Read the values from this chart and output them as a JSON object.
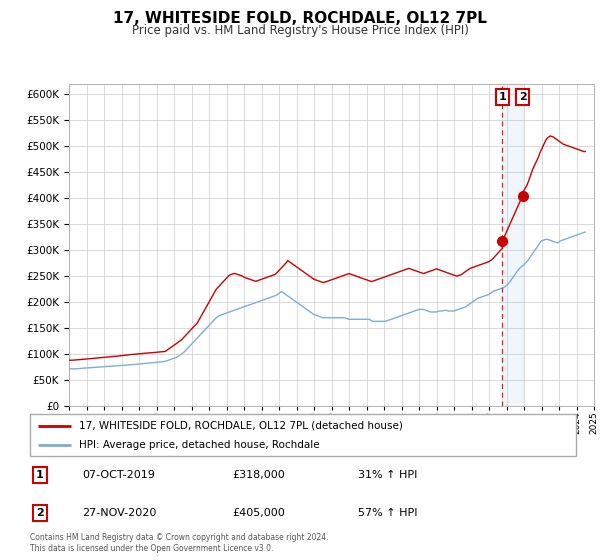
{
  "title": "17, WHITESIDE FOLD, ROCHDALE, OL12 7PL",
  "subtitle": "Price paid vs. HM Land Registry's House Price Index (HPI)",
  "title_fontsize": 11,
  "subtitle_fontsize": 8.5,
  "legend_label_red": "17, WHITESIDE FOLD, ROCHDALE, OL12 7PL (detached house)",
  "legend_label_blue": "HPI: Average price, detached house, Rochdale",
  "footer": "Contains HM Land Registry data © Crown copyright and database right 2024.\nThis data is licensed under the Open Government Licence v3.0.",
  "event1_label": "1",
  "event1_date": "07-OCT-2019",
  "event1_price": "£318,000",
  "event1_pct": "31% ↑ HPI",
  "event1_year": 2019.77,
  "event1_value": 318000,
  "event2_label": "2",
  "event2_date": "27-NOV-2020",
  "event2_price": "£405,000",
  "event2_pct": "57% ↑ HPI",
  "event2_year": 2020.92,
  "event2_value": 405000,
  "red_color": "#cc0000",
  "blue_color": "#7bafd4",
  "grid_color": "#cccccc",
  "bg_color": "#ffffff",
  "ylim": [
    0,
    620000
  ],
  "xlim_start": 1995,
  "xlim_end": 2025,
  "red_x": [
    1995.0,
    1995.083,
    1995.167,
    1995.25,
    1995.333,
    1995.417,
    1995.5,
    1995.583,
    1995.667,
    1995.75,
    1995.833,
    1995.917,
    1996.0,
    1996.083,
    1996.167,
    1996.25,
    1996.333,
    1996.417,
    1996.5,
    1996.583,
    1996.667,
    1996.75,
    1996.833,
    1996.917,
    1997.0,
    1997.083,
    1997.167,
    1997.25,
    1997.333,
    1997.417,
    1997.5,
    1997.583,
    1997.667,
    1997.75,
    1997.833,
    1997.917,
    1998.0,
    1998.083,
    1998.167,
    1998.25,
    1998.333,
    1998.417,
    1998.5,
    1998.583,
    1998.667,
    1998.75,
    1998.833,
    1998.917,
    1999.0,
    1999.083,
    1999.167,
    1999.25,
    1999.333,
    1999.417,
    1999.5,
    1999.583,
    1999.667,
    1999.75,
    1999.833,
    1999.917,
    2000.0,
    2000.083,
    2000.167,
    2000.25,
    2000.333,
    2000.417,
    2000.5,
    2000.583,
    2000.667,
    2000.75,
    2000.833,
    2000.917,
    2001.0,
    2001.083,
    2001.167,
    2001.25,
    2001.333,
    2001.417,
    2001.5,
    2001.583,
    2001.667,
    2001.75,
    2001.833,
    2001.917,
    2002.0,
    2002.083,
    2002.167,
    2002.25,
    2002.333,
    2002.417,
    2002.5,
    2002.583,
    2002.667,
    2002.75,
    2002.833,
    2002.917,
    2003.0,
    2003.083,
    2003.167,
    2003.25,
    2003.333,
    2003.417,
    2003.5,
    2003.583,
    2003.667,
    2003.75,
    2003.833,
    2003.917,
    2004.0,
    2004.083,
    2004.167,
    2004.25,
    2004.333,
    2004.417,
    2004.5,
    2004.583,
    2004.667,
    2004.75,
    2004.833,
    2004.917,
    2005.0,
    2005.083,
    2005.167,
    2005.25,
    2005.333,
    2005.417,
    2005.5,
    2005.583,
    2005.667,
    2005.75,
    2005.833,
    2005.917,
    2006.0,
    2006.083,
    2006.167,
    2006.25,
    2006.333,
    2006.417,
    2006.5,
    2006.583,
    2006.667,
    2006.75,
    2006.833,
    2006.917,
    2007.0,
    2007.083,
    2007.167,
    2007.25,
    2007.333,
    2007.417,
    2007.5,
    2007.583,
    2007.667,
    2007.75,
    2007.833,
    2007.917,
    2008.0,
    2008.083,
    2008.167,
    2008.25,
    2008.333,
    2008.417,
    2008.5,
    2008.583,
    2008.667,
    2008.75,
    2008.833,
    2008.917,
    2009.0,
    2009.083,
    2009.167,
    2009.25,
    2009.333,
    2009.417,
    2009.5,
    2009.583,
    2009.667,
    2009.75,
    2009.833,
    2009.917,
    2010.0,
    2010.083,
    2010.167,
    2010.25,
    2010.333,
    2010.417,
    2010.5,
    2010.583,
    2010.667,
    2010.75,
    2010.833,
    2010.917,
    2011.0,
    2011.083,
    2011.167,
    2011.25,
    2011.333,
    2011.417,
    2011.5,
    2011.583,
    2011.667,
    2011.75,
    2011.833,
    2011.917,
    2012.0,
    2012.083,
    2012.167,
    2012.25,
    2012.333,
    2012.417,
    2012.5,
    2012.583,
    2012.667,
    2012.75,
    2012.833,
    2012.917,
    2013.0,
    2013.083,
    2013.167,
    2013.25,
    2013.333,
    2013.417,
    2013.5,
    2013.583,
    2013.667,
    2013.75,
    2013.833,
    2013.917,
    2014.0,
    2014.083,
    2014.167,
    2014.25,
    2014.333,
    2014.417,
    2014.5,
    2014.583,
    2014.667,
    2014.75,
    2014.833,
    2014.917,
    2015.0,
    2015.083,
    2015.167,
    2015.25,
    2015.333,
    2015.417,
    2015.5,
    2015.583,
    2015.667,
    2015.75,
    2015.833,
    2015.917,
    2016.0,
    2016.083,
    2016.167,
    2016.25,
    2016.333,
    2016.417,
    2016.5,
    2016.583,
    2016.667,
    2016.75,
    2016.833,
    2016.917,
    2017.0,
    2017.083,
    2017.167,
    2017.25,
    2017.333,
    2017.417,
    2017.5,
    2017.583,
    2017.667,
    2017.75,
    2017.833,
    2017.917,
    2018.0,
    2018.083,
    2018.167,
    2018.25,
    2018.333,
    2018.417,
    2018.5,
    2018.583,
    2018.667,
    2018.75,
    2018.833,
    2018.917,
    2019.0,
    2019.083,
    2019.167,
    2019.25,
    2019.333,
    2019.417,
    2019.5,
    2019.583,
    2019.667,
    2019.75,
    2019.77,
    2020.92,
    2021.0,
    2021.083,
    2021.167,
    2021.25,
    2021.333,
    2021.417,
    2021.5,
    2021.583,
    2021.667,
    2021.75,
    2021.833,
    2021.917,
    2022.0,
    2022.083,
    2022.167,
    2022.25,
    2022.333,
    2022.417,
    2022.5,
    2022.583,
    2022.667,
    2022.75,
    2022.833,
    2022.917,
    2023.0,
    2023.083,
    2023.167,
    2023.25,
    2023.333,
    2023.417,
    2023.5,
    2023.583,
    2023.667,
    2023.75,
    2023.833,
    2023.917,
    2024.0,
    2024.083,
    2024.167,
    2024.25,
    2024.333,
    2024.417,
    2024.5
  ],
  "red_y": [
    88000,
    88200,
    88100,
    88300,
    88500,
    88800,
    89000,
    89200,
    89500,
    89800,
    90000,
    90200,
    90500,
    90800,
    91000,
    91200,
    91500,
    91800,
    92000,
    92300,
    92600,
    93000,
    93200,
    93500,
    93800,
    94000,
    94200,
    94500,
    94800,
    95000,
    95300,
    95600,
    95800,
    96000,
    96300,
    96600,
    97000,
    97200,
    97500,
    97800,
    98000,
    98500,
    99000,
    99200,
    99500,
    99800,
    100000,
    100200,
    100500,
    100800,
    101000,
    101200,
    101500,
    101800,
    102000,
    102200,
    102500,
    102800,
    103000,
    103200,
    103500,
    103800,
    104000,
    104300,
    104600,
    104800,
    105000,
    107000,
    109000,
    111000,
    113000,
    115000,
    117000,
    119000,
    121000,
    123000,
    125000,
    127000,
    130000,
    133000,
    136000,
    139000,
    142000,
    145000,
    148000,
    151000,
    154000,
    157000,
    160000,
    165000,
    170000,
    175000,
    180000,
    185000,
    190000,
    195000,
    200000,
    205000,
    210000,
    215000,
    220000,
    225000,
    228000,
    231000,
    234000,
    237000,
    240000,
    243000,
    246000,
    249000,
    252000,
    253000,
    254000,
    255000,
    255000,
    254000,
    253000,
    252000,
    251000,
    250000,
    248000,
    247000,
    246000,
    245000,
    244000,
    243000,
    242000,
    241000,
    240000,
    241000,
    242000,
    243000,
    244000,
    245000,
    246000,
    247000,
    248000,
    249000,
    250000,
    251000,
    252000,
    253000,
    255000,
    258000,
    261000,
    264000,
    267000,
    270000,
    273000,
    276000,
    280000,
    278000,
    276000,
    274000,
    272000,
    270000,
    268000,
    266000,
    264000,
    262000,
    260000,
    258000,
    256000,
    254000,
    252000,
    250000,
    248000,
    246000,
    244000,
    243000,
    242000,
    241000,
    240000,
    239000,
    238000,
    238000,
    239000,
    240000,
    241000,
    242000,
    243000,
    244000,
    245000,
    246000,
    247000,
    248000,
    249000,
    250000,
    251000,
    252000,
    253000,
    254000,
    255000,
    254000,
    253000,
    252000,
    251000,
    250000,
    249000,
    248000,
    247000,
    246000,
    245000,
    244000,
    243000,
    242000,
    241000,
    240000,
    240000,
    241000,
    242000,
    243000,
    244000,
    245000,
    246000,
    247000,
    248000,
    249000,
    250000,
    251000,
    252000,
    253000,
    254000,
    255000,
    256000,
    257000,
    258000,
    259000,
    260000,
    261000,
    262000,
    263000,
    264000,
    265000,
    264000,
    263000,
    262000,
    261000,
    260000,
    259000,
    258000,
    257000,
    256000,
    255000,
    256000,
    257000,
    258000,
    259000,
    260000,
    261000,
    262000,
    263000,
    264000,
    263000,
    262000,
    261000,
    260000,
    259000,
    258000,
    257000,
    256000,
    255000,
    254000,
    253000,
    252000,
    251000,
    250000,
    251000,
    252000,
    253000,
    255000,
    257000,
    259000,
    261000,
    263000,
    265000,
    266000,
    267000,
    268000,
    269000,
    270000,
    271000,
    272000,
    273000,
    274000,
    275000,
    276000,
    277000,
    278000,
    280000,
    282000,
    285000,
    288000,
    291000,
    294000,
    297000,
    300000,
    303000,
    318000,
    405000,
    415000,
    420000,
    425000,
    432000,
    440000,
    448000,
    456000,
    462000,
    468000,
    474000,
    480000,
    488000,
    494000,
    500000,
    506000,
    512000,
    516000,
    518000,
    520000,
    519000,
    518000,
    516000,
    514000,
    512000,
    510000,
    508000,
    506000,
    504000,
    503000,
    502000,
    501000,
    500000,
    499000,
    498000,
    497000,
    496000,
    495000,
    494000,
    493000,
    492000,
    491000,
    490000,
    490000
  ],
  "blue_x": [
    1995.0,
    1995.083,
    1995.167,
    1995.25,
    1995.333,
    1995.417,
    1995.5,
    1995.583,
    1995.667,
    1995.75,
    1995.833,
    1995.917,
    1996.0,
    1996.083,
    1996.167,
    1996.25,
    1996.333,
    1996.417,
    1996.5,
    1996.583,
    1996.667,
    1996.75,
    1996.833,
    1996.917,
    1997.0,
    1997.083,
    1997.167,
    1997.25,
    1997.333,
    1997.417,
    1997.5,
    1997.583,
    1997.667,
    1997.75,
    1997.833,
    1997.917,
    1998.0,
    1998.083,
    1998.167,
    1998.25,
    1998.333,
    1998.417,
    1998.5,
    1998.583,
    1998.667,
    1998.75,
    1998.833,
    1998.917,
    1999.0,
    1999.083,
    1999.167,
    1999.25,
    1999.333,
    1999.417,
    1999.5,
    1999.583,
    1999.667,
    1999.75,
    1999.833,
    1999.917,
    2000.0,
    2000.083,
    2000.167,
    2000.25,
    2000.333,
    2000.417,
    2000.5,
    2000.583,
    2000.667,
    2000.75,
    2000.833,
    2000.917,
    2001.0,
    2001.083,
    2001.167,
    2001.25,
    2001.333,
    2001.417,
    2001.5,
    2001.583,
    2001.667,
    2001.75,
    2001.833,
    2001.917,
    2002.0,
    2002.083,
    2002.167,
    2002.25,
    2002.333,
    2002.417,
    2002.5,
    2002.583,
    2002.667,
    2002.75,
    2002.833,
    2002.917,
    2003.0,
    2003.083,
    2003.167,
    2003.25,
    2003.333,
    2003.417,
    2003.5,
    2003.583,
    2003.667,
    2003.75,
    2003.833,
    2003.917,
    2004.0,
    2004.083,
    2004.167,
    2004.25,
    2004.333,
    2004.417,
    2004.5,
    2004.583,
    2004.667,
    2004.75,
    2004.833,
    2004.917,
    2005.0,
    2005.083,
    2005.167,
    2005.25,
    2005.333,
    2005.417,
    2005.5,
    2005.583,
    2005.667,
    2005.75,
    2005.833,
    2005.917,
    2006.0,
    2006.083,
    2006.167,
    2006.25,
    2006.333,
    2006.417,
    2006.5,
    2006.583,
    2006.667,
    2006.75,
    2006.833,
    2006.917,
    2007.0,
    2007.083,
    2007.167,
    2007.25,
    2007.333,
    2007.417,
    2007.5,
    2007.583,
    2007.667,
    2007.75,
    2007.833,
    2007.917,
    2008.0,
    2008.083,
    2008.167,
    2008.25,
    2008.333,
    2008.417,
    2008.5,
    2008.583,
    2008.667,
    2008.75,
    2008.833,
    2008.917,
    2009.0,
    2009.083,
    2009.167,
    2009.25,
    2009.333,
    2009.417,
    2009.5,
    2009.583,
    2009.667,
    2009.75,
    2009.833,
    2009.917,
    2010.0,
    2010.083,
    2010.167,
    2010.25,
    2010.333,
    2010.417,
    2010.5,
    2010.583,
    2010.667,
    2010.75,
    2010.833,
    2010.917,
    2011.0,
    2011.083,
    2011.167,
    2011.25,
    2011.333,
    2011.417,
    2011.5,
    2011.583,
    2011.667,
    2011.75,
    2011.833,
    2011.917,
    2012.0,
    2012.083,
    2012.167,
    2012.25,
    2012.333,
    2012.417,
    2012.5,
    2012.583,
    2012.667,
    2012.75,
    2012.833,
    2012.917,
    2013.0,
    2013.083,
    2013.167,
    2013.25,
    2013.333,
    2013.417,
    2013.5,
    2013.583,
    2013.667,
    2013.75,
    2013.833,
    2013.917,
    2014.0,
    2014.083,
    2014.167,
    2014.25,
    2014.333,
    2014.417,
    2014.5,
    2014.583,
    2014.667,
    2014.75,
    2014.833,
    2014.917,
    2015.0,
    2015.083,
    2015.167,
    2015.25,
    2015.333,
    2015.417,
    2015.5,
    2015.583,
    2015.667,
    2015.75,
    2015.833,
    2015.917,
    2016.0,
    2016.083,
    2016.167,
    2016.25,
    2016.333,
    2016.417,
    2016.5,
    2016.583,
    2016.667,
    2016.75,
    2016.833,
    2016.917,
    2017.0,
    2017.083,
    2017.167,
    2017.25,
    2017.333,
    2017.417,
    2017.5,
    2017.583,
    2017.667,
    2017.75,
    2017.833,
    2017.917,
    2018.0,
    2018.083,
    2018.167,
    2018.25,
    2018.333,
    2018.417,
    2018.5,
    2018.583,
    2018.667,
    2018.75,
    2018.833,
    2018.917,
    2019.0,
    2019.083,
    2019.167,
    2019.25,
    2019.333,
    2019.417,
    2019.5,
    2019.583,
    2019.667,
    2019.75,
    2019.833,
    2019.917,
    2020.0,
    2020.083,
    2020.167,
    2020.25,
    2020.333,
    2020.417,
    2020.5,
    2020.583,
    2020.667,
    2020.75,
    2020.833,
    2020.917,
    2021.0,
    2021.083,
    2021.167,
    2021.25,
    2021.333,
    2021.417,
    2021.5,
    2021.583,
    2021.667,
    2021.75,
    2021.833,
    2021.917,
    2022.0,
    2022.083,
    2022.167,
    2022.25,
    2022.333,
    2022.417,
    2022.5,
    2022.583,
    2022.667,
    2022.75,
    2022.833,
    2022.917,
    2023.0,
    2023.083,
    2023.167,
    2023.25,
    2023.333,
    2023.417,
    2023.5,
    2023.583,
    2023.667,
    2023.75,
    2023.833,
    2023.917,
    2024.0,
    2024.083,
    2024.167,
    2024.25,
    2024.333,
    2024.417,
    2024.5
  ],
  "blue_y": [
    72000,
    71800,
    71600,
    71400,
    71500,
    71700,
    72000,
    72200,
    72400,
    72600,
    72800,
    73000,
    73200,
    73400,
    73600,
    73800,
    74000,
    74200,
    74500,
    74700,
    74900,
    75200,
    75400,
    75600,
    75800,
    76000,
    76200,
    76400,
    76600,
    76800,
    77000,
    77200,
    77400,
    77600,
    77800,
    78000,
    78200,
    78400,
    78600,
    78800,
    79000,
    79200,
    79400,
    79600,
    79800,
    80000,
    80200,
    80500,
    80800,
    81000,
    81300,
    81600,
    81900,
    82200,
    82500,
    82800,
    83000,
    83200,
    83500,
    83800,
    84000,
    84300,
    84600,
    84900,
    85200,
    85500,
    86000,
    87000,
    88000,
    89000,
    90000,
    91000,
    92000,
    93000,
    94000,
    96000,
    98000,
    100000,
    102000,
    104000,
    107000,
    110000,
    113000,
    116000,
    119000,
    122000,
    125000,
    128000,
    131000,
    134000,
    137000,
    140000,
    143000,
    146000,
    149000,
    152000,
    155000,
    158000,
    161000,
    164000,
    167000,
    170000,
    172000,
    174000,
    175000,
    176000,
    177000,
    178000,
    179000,
    180000,
    181000,
    182000,
    183000,
    184000,
    185000,
    186000,
    187000,
    188000,
    189000,
    190000,
    191000,
    192000,
    193000,
    194000,
    195000,
    196000,
    197000,
    198000,
    199000,
    200000,
    201000,
    202000,
    203000,
    204000,
    205000,
    206000,
    207000,
    208000,
    209000,
    210000,
    211000,
    212000,
    213000,
    215000,
    217000,
    219000,
    220000,
    218000,
    216000,
    214000,
    212000,
    210000,
    208000,
    206000,
    204000,
    202000,
    200000,
    198000,
    196000,
    194000,
    192000,
    190000,
    188000,
    186000,
    184000,
    182000,
    180000,
    178000,
    176000,
    175000,
    174000,
    173000,
    172000,
    171000,
    170000,
    170000,
    170000,
    170000,
    170000,
    170000,
    170000,
    170000,
    170000,
    170000,
    170000,
    170000,
    170000,
    170000,
    170000,
    170000,
    169000,
    168000,
    167000,
    167000,
    167000,
    167000,
    167000,
    167000,
    167000,
    167000,
    167000,
    167000,
    167000,
    167000,
    167000,
    167000,
    167000,
    165000,
    163000,
    163000,
    163000,
    163000,
    163000,
    163000,
    163000,
    163000,
    163000,
    163000,
    164000,
    165000,
    166000,
    167000,
    168000,
    169000,
    170000,
    171000,
    172000,
    173000,
    174000,
    175000,
    176000,
    177000,
    178000,
    179000,
    180000,
    181000,
    182000,
    183000,
    184000,
    185000,
    186000,
    186000,
    186000,
    186000,
    185000,
    184000,
    183000,
    182000,
    181000,
    181000,
    181000,
    181000,
    181000,
    182000,
    183000,
    183000,
    183000,
    184000,
    184000,
    184000,
    183000,
    183000,
    183000,
    183000,
    183000,
    184000,
    185000,
    186000,
    187000,
    188000,
    189000,
    190000,
    191000,
    193000,
    195000,
    197000,
    199000,
    201000,
    203000,
    205000,
    207000,
    208000,
    209000,
    210000,
    211000,
    212000,
    213000,
    214000,
    215000,
    217000,
    219000,
    221000,
    222000,
    223000,
    224000,
    225000,
    226000,
    227000,
    228000,
    230000,
    232000,
    235000,
    238000,
    242000,
    246000,
    250000,
    254000,
    258000,
    262000,
    265000,
    268000,
    270000,
    272000,
    275000,
    278000,
    282000,
    286000,
    290000,
    294000,
    298000,
    302000,
    306000,
    310000,
    315000,
    318000,
    319000,
    320000,
    321000,
    321000,
    320000,
    319000,
    318000,
    317000,
    316000,
    315000,
    314000,
    316000,
    318000,
    319000,
    320000,
    321000,
    322000,
    323000,
    324000,
    325000,
    326000,
    327000,
    328000,
    329000,
    330000,
    331000,
    332000,
    333000,
    334000,
    335000
  ]
}
